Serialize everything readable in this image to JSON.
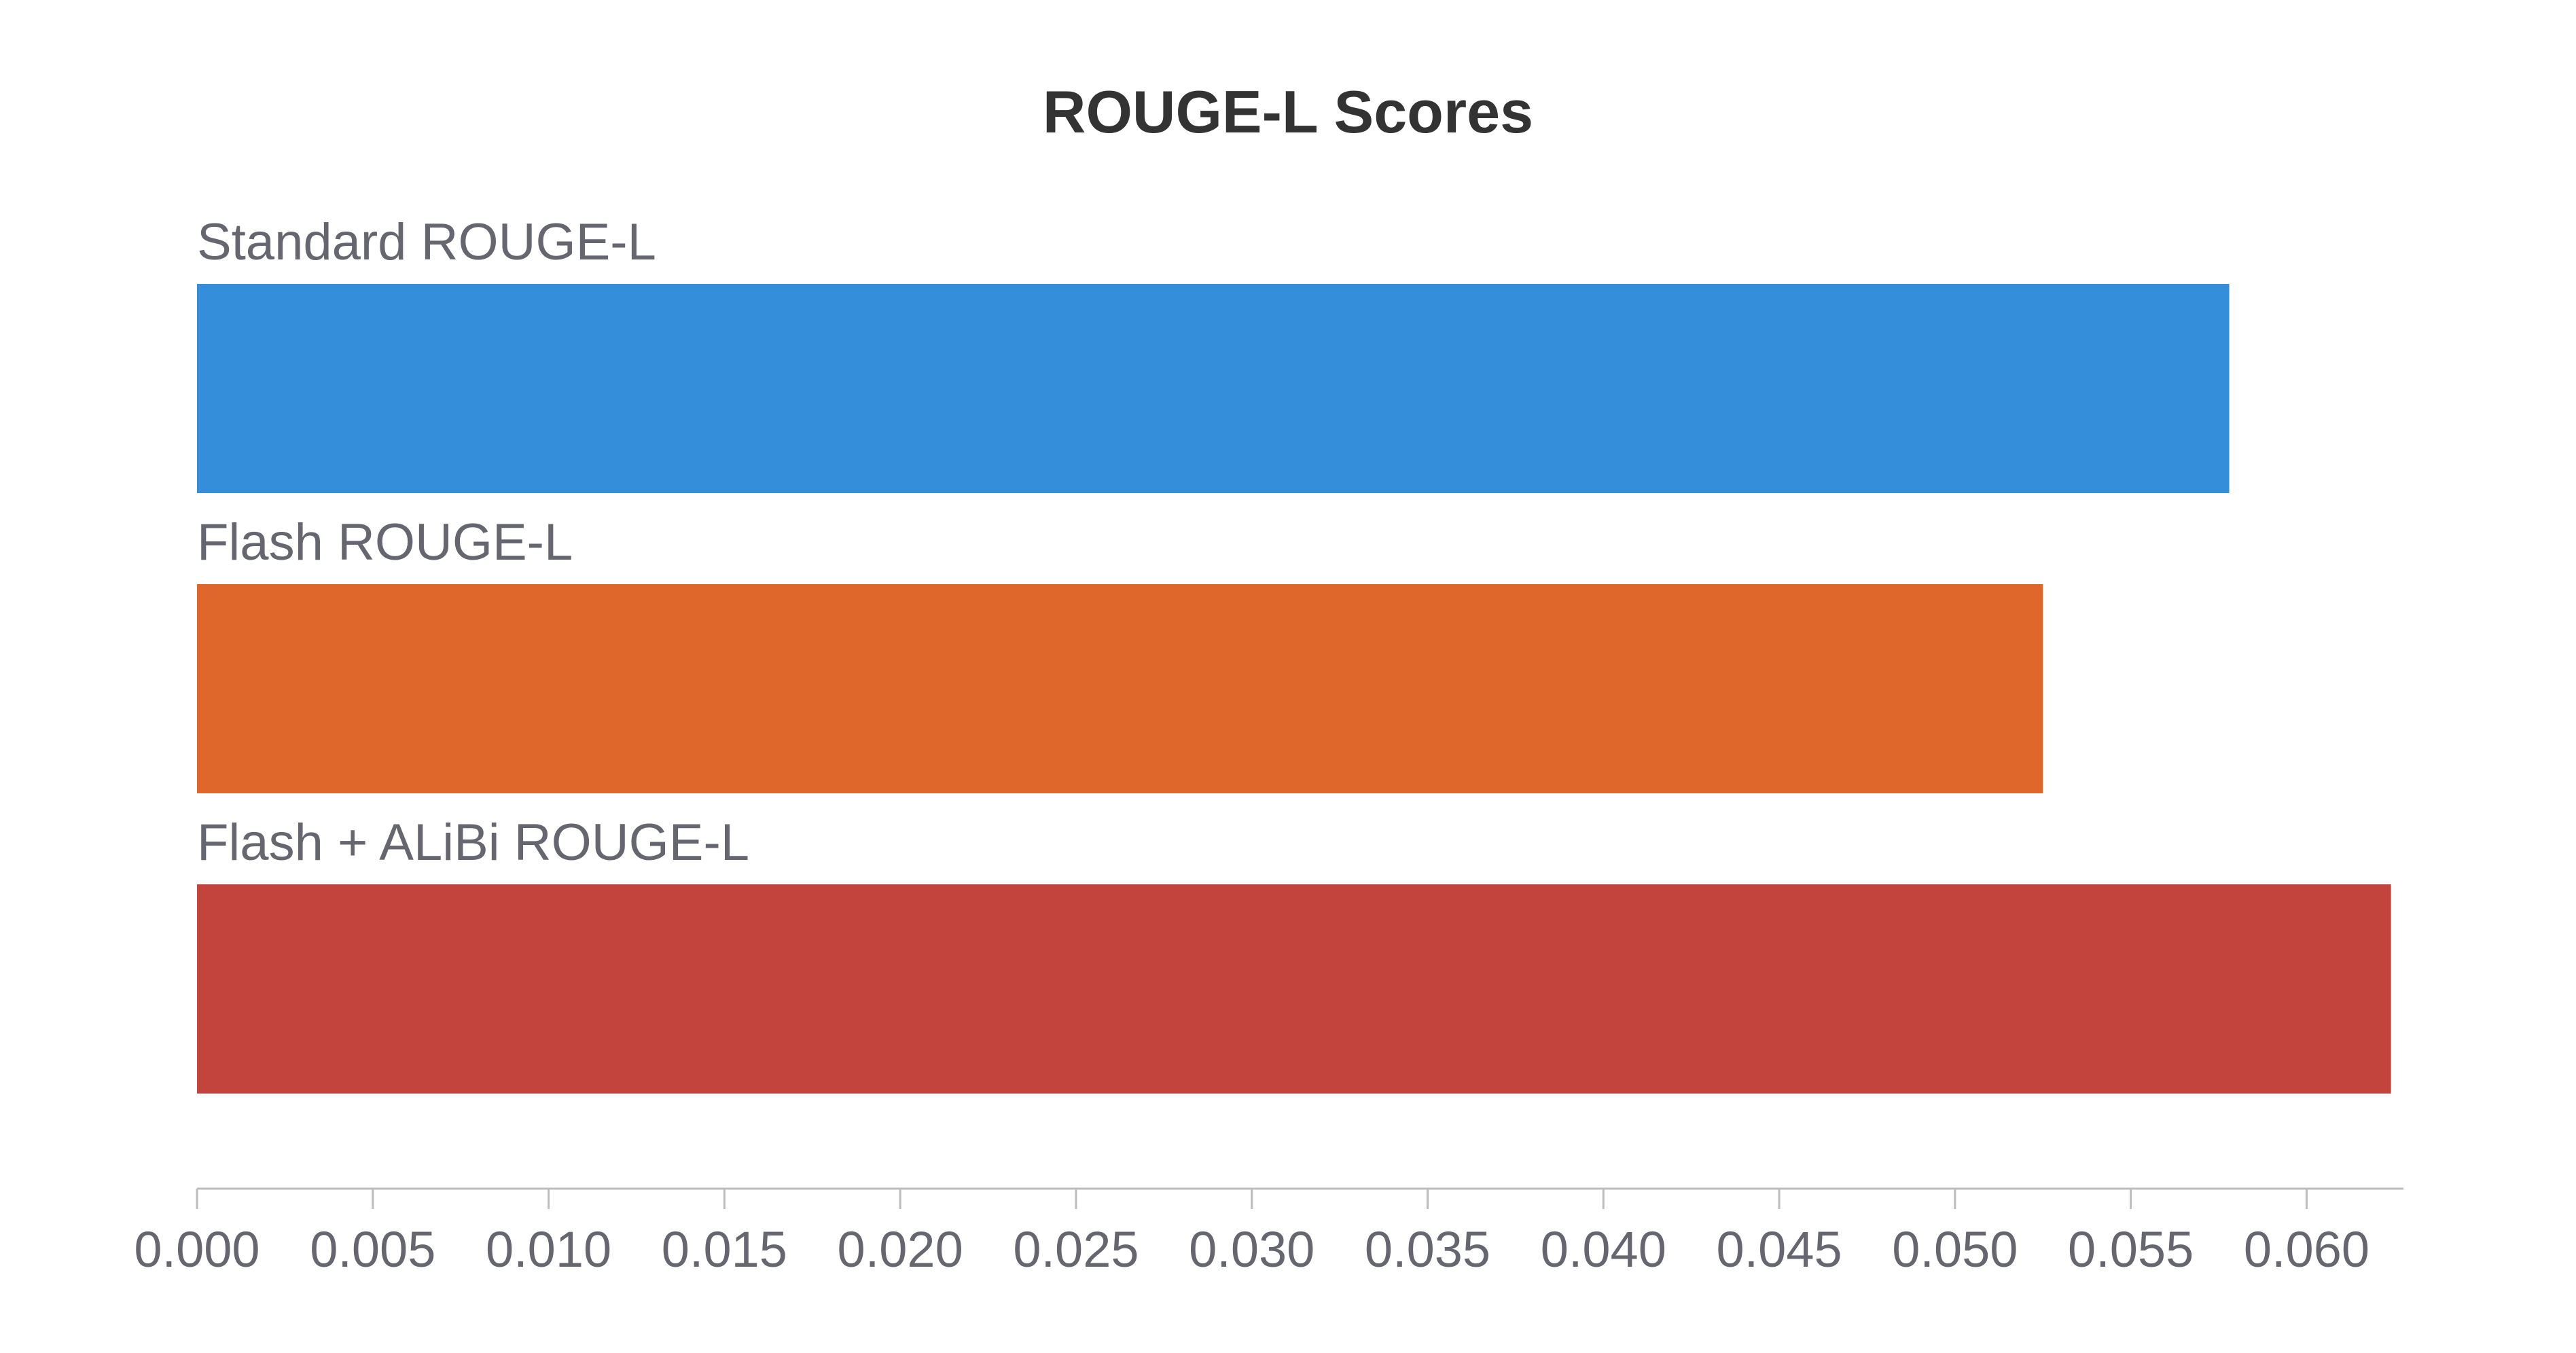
{
  "chart_data": {
    "type": "bar",
    "orientation": "horizontal",
    "title": "ROUGE-L Scores",
    "xlabel": "",
    "ylabel": "",
    "categories": [
      "Standard ROUGE-L",
      "Flash ROUGE-L",
      "Flash + ALiBi ROUGE-L"
    ],
    "values": [
      0.0578,
      0.0525,
      0.0624
    ],
    "colors": [
      "#348ED9",
      "#DF672B",
      "#C3443D"
    ],
    "xlim": [
      0,
      0.0626
    ],
    "xticks": [
      "0.000",
      "0.005",
      "0.010",
      "0.015",
      "0.020",
      "0.025",
      "0.030",
      "0.035",
      "0.040",
      "0.045",
      "0.050",
      "0.055",
      "0.060"
    ],
    "grid": false,
    "legend": "none",
    "axis_color": "#BDBDBD",
    "text_color": "#666670",
    "title_color": "#333333"
  }
}
